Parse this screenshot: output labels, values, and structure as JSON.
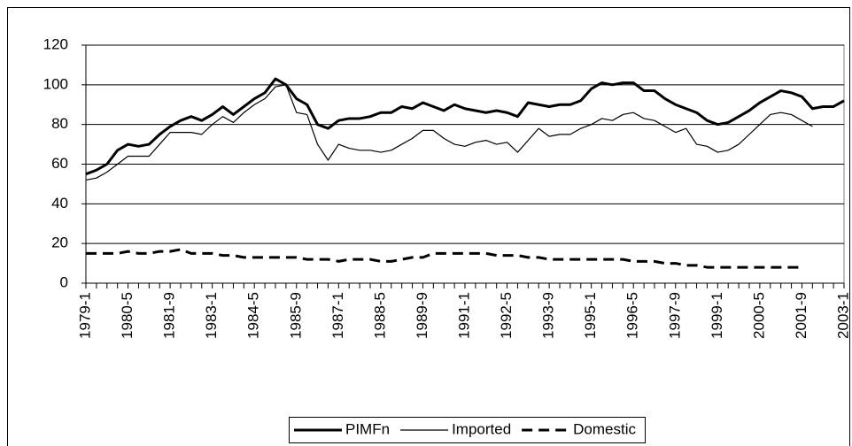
{
  "chart_data": {
    "type": "line",
    "categories": [
      "1979-1",
      null,
      null,
      null,
      "1980-5",
      null,
      null,
      null,
      "1981-9",
      null,
      null,
      null,
      "1983-1",
      null,
      null,
      null,
      "1984-5",
      null,
      null,
      null,
      "1985-9",
      null,
      null,
      null,
      "1987-1",
      null,
      null,
      null,
      "1988-5",
      null,
      null,
      null,
      "1989-9",
      null,
      null,
      null,
      "1991-1",
      null,
      null,
      null,
      "1992-5",
      null,
      null,
      null,
      "1993-9",
      null,
      null,
      null,
      "1995-1",
      null,
      null,
      null,
      "1996-5",
      null,
      null,
      null,
      "1997-9",
      null,
      null,
      null,
      "1999-1",
      null,
      null,
      null,
      "2000-5",
      null,
      null,
      null,
      "2001-9",
      null,
      null,
      null,
      "2003-1"
    ],
    "series": [
      {
        "name": "PIMFn",
        "color": "#000000",
        "line_width": 3,
        "dash": "solid",
        "values": [
          55,
          57,
          60,
          67,
          70,
          69,
          70,
          75,
          79,
          82,
          84,
          82,
          85,
          89,
          85,
          89,
          93,
          96,
          103,
          100,
          93,
          90,
          80,
          78,
          82,
          83,
          83,
          84,
          86,
          86,
          89,
          88,
          91,
          89,
          87,
          90,
          88,
          87,
          86,
          87,
          86,
          84,
          91,
          90,
          89,
          90,
          90,
          92,
          98,
          101,
          100,
          101,
          101,
          97,
          97,
          93,
          90,
          88,
          86,
          82,
          80,
          81,
          84,
          87,
          91,
          94,
          97,
          96,
          94,
          88,
          89,
          89,
          92
        ]
      },
      {
        "name": "Imported",
        "color": "#000000",
        "line_width": 1.2,
        "dash": "solid",
        "values": [
          52,
          53,
          56,
          60,
          64,
          64,
          64,
          70,
          76,
          76,
          76,
          75,
          80,
          84,
          81,
          86,
          90,
          93,
          99,
          100,
          86,
          85,
          70,
          62,
          70,
          68,
          67,
          67,
          66,
          67,
          70,
          73,
          77,
          77,
          73,
          70,
          69,
          71,
          72,
          70,
          71,
          66,
          72,
          78,
          74,
          75,
          75,
          78,
          80,
          83,
          82,
          85,
          86,
          83,
          82,
          79,
          76,
          78,
          70,
          69,
          66,
          67,
          70,
          75,
          80,
          85,
          86,
          85,
          82,
          79,
          null,
          null,
          null
        ]
      },
      {
        "name": "Domestic",
        "color": "#000000",
        "line_width": 3,
        "dash": "dashed",
        "values": [
          15,
          15,
          15,
          15,
          16,
          15,
          15,
          16,
          16,
          17,
          15,
          15,
          15,
          14,
          14,
          13,
          13,
          13,
          13,
          13,
          13,
          12,
          12,
          12,
          11,
          12,
          12,
          12,
          11,
          11,
          12,
          13,
          13,
          15,
          15,
          15,
          15,
          15,
          15,
          14,
          14,
          14,
          13,
          13,
          12,
          12,
          12,
          12,
          12,
          12,
          12,
          12,
          11,
          11,
          11,
          10,
          10,
          9,
          9,
          8,
          8,
          8,
          8,
          8,
          8,
          8,
          8,
          8,
          8,
          null,
          null,
          null,
          null
        ]
      }
    ],
    "ylim": [
      0,
      120
    ],
    "yticks": [
      0,
      20,
      40,
      60,
      80,
      100,
      120
    ],
    "grid": true,
    "legend": "bottom"
  }
}
